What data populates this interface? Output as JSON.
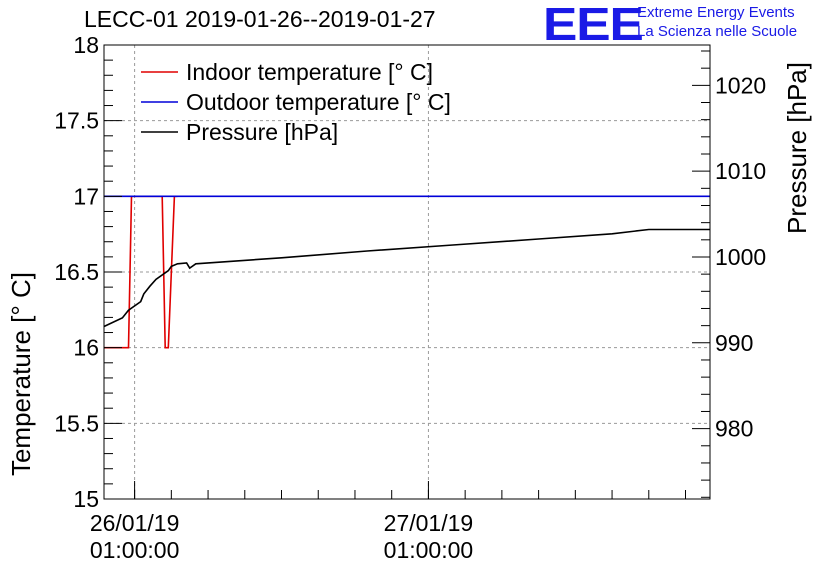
{
  "header": {
    "title": "LECC-01 2019-01-26--2019-01-27",
    "logo_text": "EEE",
    "logo_line1": "Extreme Energy Events",
    "logo_line2": "La Scienza nelle Scuole",
    "logo_color": "#1a1ae6"
  },
  "chart_data": {
    "type": "line",
    "y_left_label": "Temperature [° C]",
    "y_right_label": "Pressure [hPa]",
    "y_left_lim": [
      15,
      18
    ],
    "y_left_ticks": [
      "15",
      "15.5",
      "16",
      "16.5",
      "17",
      "17.5",
      "18"
    ],
    "y_right_lim": [
      971.8,
      1024.7
    ],
    "y_right_ticks": [
      "980",
      "990",
      "1000",
      "1010",
      "1020"
    ],
    "x_lim": [
      "2019-01-25 22:30",
      "2019-01-28 00:00"
    ],
    "x_ticks": [
      {
        "x": "2019-01-26 01:00",
        "line1": "26/01/19",
        "line2": "01:00:00"
      },
      {
        "x": "2019-01-27 01:00",
        "line1": "27/01/19",
        "line2": "01:00:00"
      }
    ],
    "grid": true,
    "legend_position": "top-left",
    "series": [
      {
        "name": "Indoor temperature [° C]",
        "axis": "left",
        "color": "#e00000",
        "x": [
          "2019-01-25 22:30",
          "2019-01-26 00:30",
          "2019-01-26 00:45",
          "2019-01-26 01:00",
          "2019-01-26 03:15",
          "2019-01-26 03:30",
          "2019-01-26 03:45",
          "2019-01-26 04:15",
          "2019-01-26 04:30"
        ],
        "y": [
          16,
          16,
          17,
          17,
          17,
          16,
          16,
          17,
          17
        ]
      },
      {
        "name": "Outdoor temperature [° C]",
        "axis": "left",
        "color": "#0000d8",
        "x": [
          "2019-01-25 22:30",
          "2019-01-28 00:00"
        ],
        "y": [
          17,
          17
        ]
      },
      {
        "name": "Pressure [hPa]",
        "axis": "right",
        "color": "#000000",
        "x": [
          "2019-01-25 22:30",
          "2019-01-26 00:00",
          "2019-01-26 00:30",
          "2019-01-26 01:30",
          "2019-01-26 01:45",
          "2019-01-26 02:15",
          "2019-01-26 02:45",
          "2019-01-26 03:45",
          "2019-01-26 04:00",
          "2019-01-26 04:30",
          "2019-01-26 05:15",
          "2019-01-26 05:30",
          "2019-01-26 06:00",
          "2019-01-26 13:00",
          "2019-01-26 20:00",
          "2019-01-27 03:00",
          "2019-01-27 10:00",
          "2019-01-27 16:00",
          "2019-01-27 19:00",
          "2019-01-28 00:00"
        ],
        "y": [
          991.9,
          992.9,
          993.8,
          994.8,
          995.7,
          996.6,
          997.4,
          998.4,
          998.9,
          999.2,
          999.3,
          998.7,
          999.2,
          999.9,
          1000.7,
          1001.4,
          1002.1,
          1002.7,
          1003.2,
          1003.2
        ]
      }
    ]
  }
}
